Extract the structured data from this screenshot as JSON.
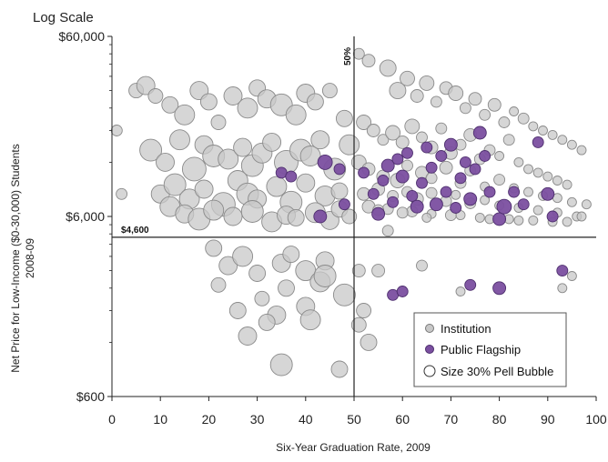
{
  "chart_data": {
    "type": "scatter",
    "scale_note": "Log Scale",
    "xlabel": "Six-Year Graduation Rate, 2009",
    "ylabel": "Net Price for Low-Income ($0-30,000) Students",
    "ylabel_line2": "2008-09",
    "xlim": [
      0,
      100
    ],
    "ylim": [
      600,
      60000
    ],
    "yscale": "log",
    "x_ticks": [
      0,
      10,
      20,
      30,
      40,
      50,
      60,
      70,
      80,
      90,
      100
    ],
    "x_tick_labels": [
      "0",
      "10",
      "20",
      "30",
      "40",
      "50",
      "60",
      "70",
      "80",
      "90",
      "100"
    ],
    "y_ticks": [
      600,
      6000,
      60000
    ],
    "y_tick_labels": [
      "$600",
      "$6,000",
      "$60,000"
    ],
    "grid": false,
    "reference_lines": {
      "vertical": {
        "x": 50,
        "label": "50%"
      },
      "horizontal": {
        "y": 4600,
        "label": "$4,600"
      }
    },
    "legend": {
      "position": "bottom-right",
      "items": [
        {
          "label": "Institution",
          "symbol": "gray-dot",
          "color": "#c8c8c8"
        },
        {
          "label": "Public Flagship",
          "symbol": "purple-dot",
          "color": "#7b4fa0"
        },
        {
          "label": "Size 30% Pell Bubble",
          "symbol": "open-circle",
          "color": "#ffffff"
        }
      ]
    },
    "size_encoding": "Size 30% Pell Bubble",
    "colors": {
      "institution_fill": "#c8c8c8",
      "institution_stroke": "#8a8a8a",
      "flagship_fill": "#7b4fa0",
      "flagship_stroke": "#4e2f6e",
      "reference_line": "#222222"
    },
    "series": [
      {
        "name": "Institution",
        "x": [
          1,
          2,
          5,
          7,
          9,
          12,
          15,
          18,
          20,
          22,
          25,
          28,
          30,
          32,
          35,
          38,
          40,
          42,
          45,
          48,
          8,
          11,
          14,
          17,
          19,
          21,
          24,
          27,
          29,
          31,
          33,
          36,
          39,
          41,
          43,
          46,
          49,
          10,
          13,
          16,
          19,
          23,
          26,
          28,
          30,
          34,
          37,
          40,
          44,
          47,
          12,
          15,
          18,
          21,
          25,
          29,
          33,
          36,
          38,
          42,
          45,
          47,
          49,
          21,
          24,
          27,
          30,
          35,
          37,
          40,
          44,
          22,
          26,
          31,
          34,
          36,
          40,
          43,
          48,
          28,
          32,
          35,
          41,
          44,
          47,
          51,
          53,
          55,
          57,
          59,
          61,
          63,
          65,
          67,
          69,
          71,
          73,
          75,
          77,
          79,
          81,
          83,
          85,
          87,
          89,
          91,
          93,
          95,
          97,
          52,
          54,
          56,
          58,
          60,
          62,
          64,
          66,
          68,
          70,
          72,
          74,
          76,
          78,
          80,
          82,
          84,
          86,
          88,
          90,
          92,
          94,
          51,
          53,
          56,
          59,
          61,
          64,
          66,
          69,
          72,
          74,
          77,
          80,
          83,
          86,
          89,
          92,
          95,
          98,
          52,
          55,
          58,
          61,
          63,
          66,
          69,
          71,
          74,
          77,
          80,
          84,
          88,
          92,
          96,
          53,
          57,
          62,
          66,
          70,
          76,
          82,
          87,
          94,
          55,
          60,
          65,
          72,
          78,
          84,
          91,
          97,
          51,
          52,
          64,
          72,
          93,
          95,
          51,
          53,
          57
        ],
        "y": [
          18000,
          8000,
          30000,
          32000,
          28000,
          25000,
          22000,
          30000,
          26000,
          20000,
          28000,
          24000,
          31000,
          27000,
          25000,
          22000,
          29000,
          26000,
          30000,
          21000,
          14000,
          12000,
          16000,
          11000,
          15000,
          13000,
          12500,
          14500,
          11500,
          13500,
          15500,
          12000,
          14000,
          13000,
          16000,
          11000,
          15000,
          8000,
          9000,
          7500,
          8500,
          7000,
          9500,
          8000,
          7500,
          8800,
          7200,
          9200,
          7800,
          8300,
          6800,
          6200,
          5800,
          6500,
          6000,
          6400,
          5600,
          6100,
          5900,
          6300,
          5700,
          6600,
          6000,
          4000,
          3200,
          3600,
          2900,
          3300,
          3700,
          3000,
          3400,
          2500,
          1800,
          2100,
          1700,
          2400,
          1900,
          2600,
          2200,
          1300,
          1550,
          900,
          1600,
          2800,
          850,
          1500,
          1200,
          3000,
          40000,
          30000,
          35000,
          28000,
          33000,
          26000,
          31000,
          29000,
          24000,
          27000,
          22000,
          25000,
          20000,
          23000,
          21000,
          19000,
          18000,
          17000,
          16000,
          15000,
          14000,
          20000,
          18000,
          16000,
          17500,
          15500,
          19000,
          16500,
          14500,
          18500,
          13500,
          15000,
          17000,
          12500,
          14000,
          13000,
          16000,
          12000,
          11000,
          10500,
          10000,
          9500,
          9000,
          12000,
          11000,
          10000,
          9500,
          11500,
          10500,
          9800,
          11200,
          9200,
          10800,
          8800,
          9600,
          8600,
          8200,
          7800,
          7600,
          7200,
          7000,
          8000,
          8500,
          7800,
          8200,
          7500,
          8100,
          7300,
          7900,
          7100,
          7400,
          6900,
          6700,
          6500,
          6300,
          6000,
          6800,
          6600,
          6400,
          6200,
          6100,
          5900,
          5800,
          5700,
          5600,
          6500,
          6300,
          5900,
          6100,
          5800,
          5700,
          5600,
          6000,
          3000,
          1800,
          3200,
          2300,
          2400,
          2800,
          48000,
          44000,
          5000
        ],
        "size": [
          6,
          6,
          8,
          10,
          8,
          9,
          11,
          10,
          9,
          8,
          10,
          11,
          9,
          10,
          12,
          11,
          10,
          9,
          8,
          9,
          12,
          10,
          11,
          13,
          10,
          12,
          11,
          10,
          12,
          11,
          10,
          13,
          12,
          11,
          10,
          12,
          11,
          10,
          12,
          11,
          10,
          13,
          11,
          12,
          10,
          11,
          12,
          10,
          11,
          9,
          11,
          10,
          12,
          11,
          10,
          12,
          11,
          10,
          9,
          11,
          10,
          9,
          8,
          9,
          10,
          11,
          9,
          10,
          9,
          11,
          10,
          8,
          9,
          8,
          10,
          9,
          10,
          11,
          12,
          10,
          9,
          12,
          11,
          12,
          9,
          8,
          9,
          7,
          9,
          9,
          8,
          7,
          8,
          6,
          7,
          8,
          6,
          7,
          6,
          7,
          6,
          5,
          6,
          5,
          5,
          5,
          5,
          5,
          5,
          8,
          7,
          6,
          8,
          7,
          8,
          6,
          7,
          6,
          7,
          6,
          7,
          6,
          6,
          5,
          6,
          5,
          5,
          5,
          5,
          5,
          5,
          8,
          7,
          7,
          8,
          6,
          7,
          6,
          7,
          6,
          6,
          5,
          6,
          5,
          5,
          5,
          5,
          5,
          5,
          7,
          7,
          6,
          6,
          7,
          6,
          6,
          5,
          6,
          5,
          5,
          5,
          5,
          5,
          5,
          7,
          6,
          6,
          5,
          6,
          5,
          5,
          5,
          5,
          6,
          6,
          5,
          5,
          5,
          5,
          5,
          5,
          7,
          8,
          6,
          5,
          5,
          5,
          6,
          7,
          6
        ]
      },
      {
        "name": "Public Flagship",
        "x": [
          35,
          43,
          44,
          47,
          48,
          52,
          54,
          55,
          56,
          57,
          58,
          59,
          60,
          61,
          62,
          63,
          64,
          65,
          66,
          67,
          68,
          69,
          70,
          71,
          72,
          73,
          74,
          75,
          76,
          77,
          78,
          80,
          81,
          83,
          85,
          88,
          90,
          91,
          58,
          60,
          74,
          80,
          85,
          93,
          37
        ],
        "y": [
          10500,
          6000,
          12000,
          11000,
          7000,
          10500,
          8000,
          6200,
          9500,
          11500,
          7200,
          12500,
          10000,
          13500,
          7800,
          6800,
          9200,
          14500,
          11200,
          7000,
          13000,
          8200,
          15000,
          6700,
          9800,
          12000,
          7500,
          11000,
          17500,
          13000,
          8200,
          5800,
          6800,
          8200,
          7000,
          15500,
          8000,
          6000,
          2200,
          2300,
          2500,
          2400,
          1600,
          3000,
          10000
        ],
        "size": [
          6,
          7,
          8,
          6,
          6,
          6,
          6,
          7,
          6,
          7,
          6,
          6,
          7,
          6,
          6,
          7,
          6,
          6,
          6,
          7,
          6,
          6,
          7,
          6,
          6,
          6,
          7,
          6,
          7,
          6,
          6,
          7,
          8,
          6,
          6,
          6,
          7,
          6,
          6,
          6,
          6,
          7,
          6,
          6,
          6
        ]
      }
    ]
  }
}
